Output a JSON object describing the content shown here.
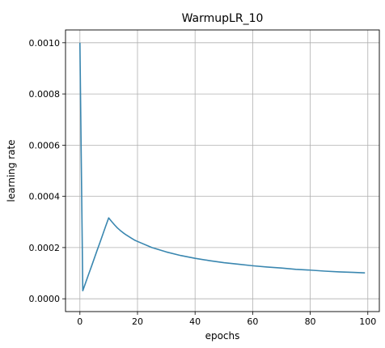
{
  "chart_data": {
    "type": "line",
    "title": "WarmupLR_10",
    "xlabel": "epochs",
    "ylabel": "learning rate",
    "xlim": [
      -5,
      104
    ],
    "ylim": [
      -5e-05,
      0.00105
    ],
    "xticks": [
      0,
      20,
      40,
      60,
      80,
      100
    ],
    "xtick_labels": [
      "0",
      "20",
      "40",
      "60",
      "80",
      "100"
    ],
    "yticks": [
      0.0,
      0.0002,
      0.0004,
      0.0006,
      0.0008,
      0.001
    ],
    "ytick_labels": [
      "0.0000",
      "0.0002",
      "0.0004",
      "0.0006",
      "0.0008",
      "0.0010"
    ],
    "grid": true,
    "series": [
      {
        "color": "#3a87b0",
        "x": [
          0,
          1,
          2,
          3,
          4,
          5,
          6,
          7,
          8,
          9,
          10,
          11,
          12,
          13,
          14,
          15,
          16,
          17,
          18,
          19,
          20,
          25,
          30,
          35,
          40,
          45,
          50,
          55,
          60,
          65,
          70,
          75,
          80,
          85,
          90,
          95,
          99
        ],
        "y": [
          0.001,
          3.16e-05,
          6.32e-05,
          9.49e-05,
          0.000126,
          0.000158,
          0.00019,
          0.000221,
          0.000253,
          0.000285,
          0.000316,
          0.000302,
          0.000289,
          0.000277,
          0.000267,
          0.000258,
          0.00025,
          0.000243,
          0.000236,
          0.000229,
          0.000224,
          0.0002,
          0.000183,
          0.000169,
          0.000158,
          0.000149,
          0.000141,
          0.000135,
          0.000129,
          0.000124,
          0.00012,
          0.000115,
          0.000112,
          0.000108,
          0.000105,
          0.000103,
          0.000101
        ]
      }
    ]
  }
}
